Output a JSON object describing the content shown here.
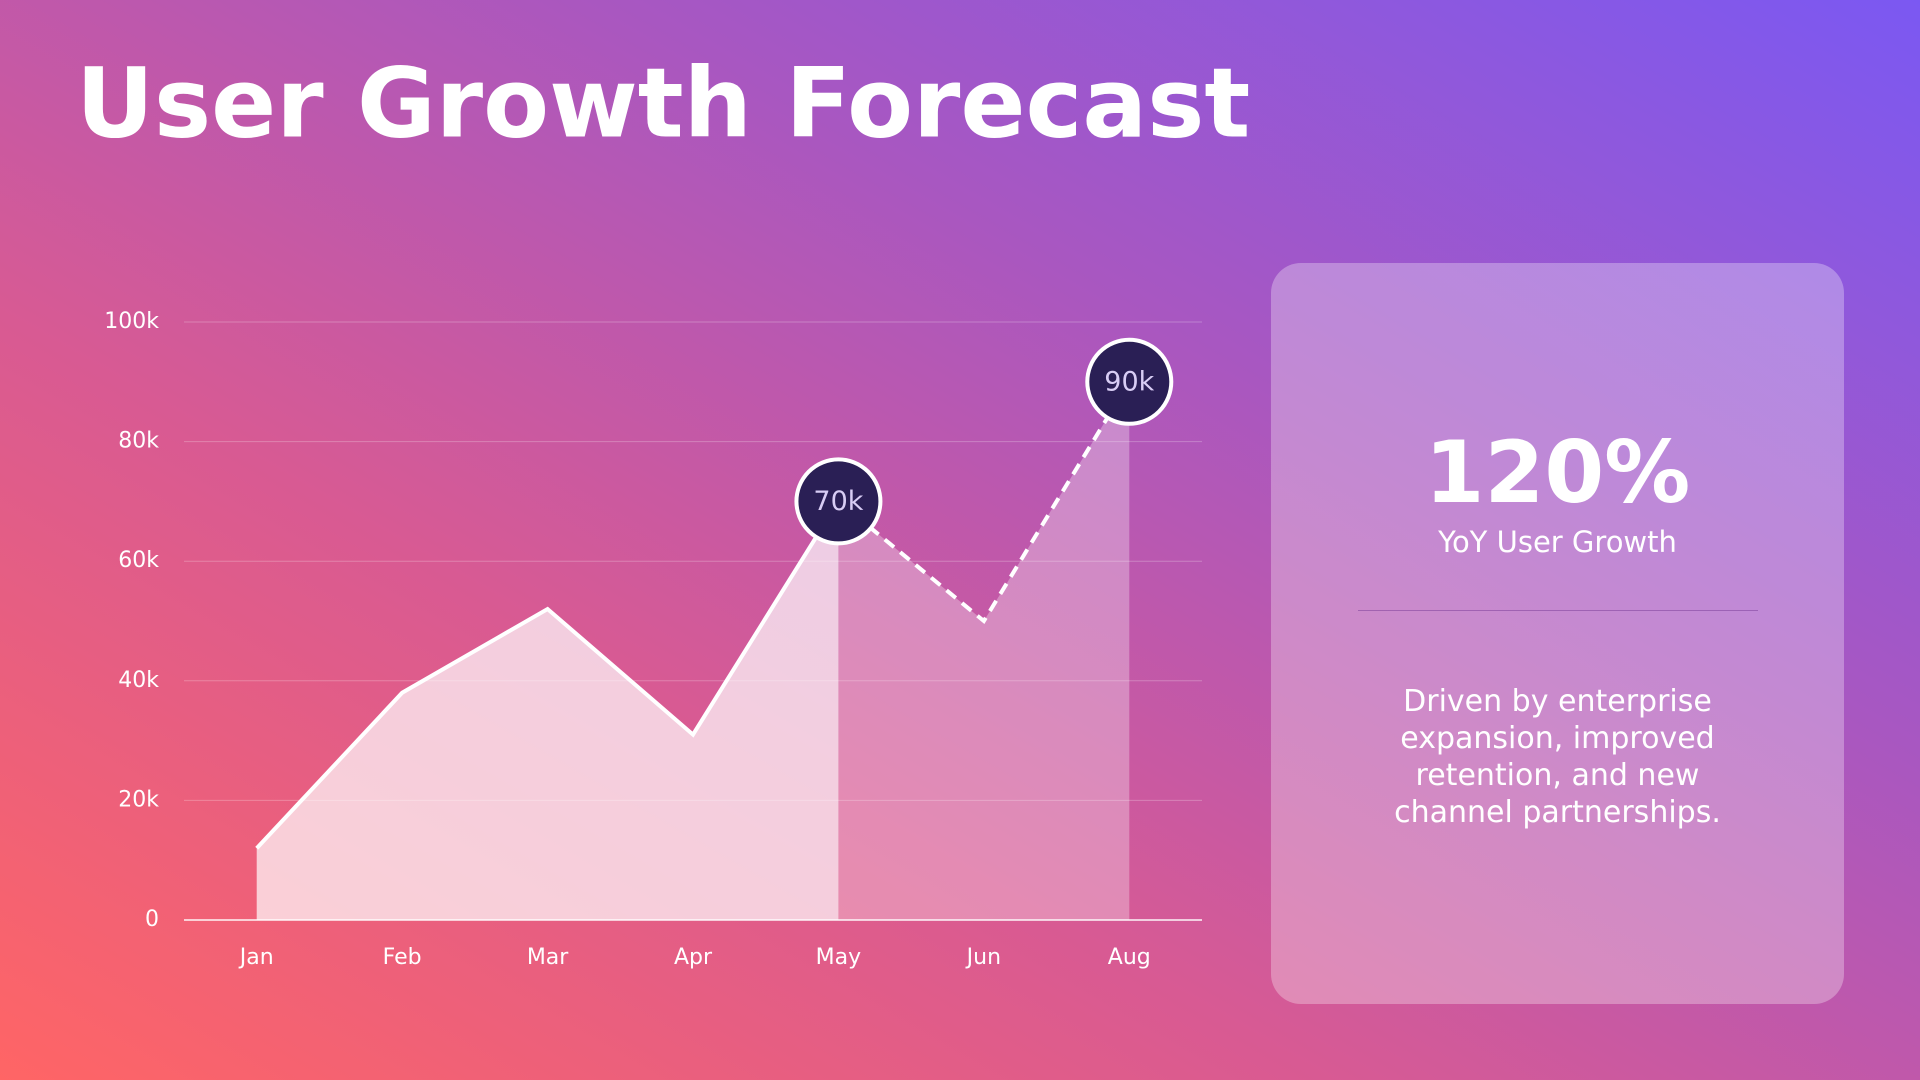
{
  "chart_data": {
    "type": "area",
    "title": "User Growth Forecast",
    "categories": [
      "Jan",
      "Feb",
      "Mar",
      "Apr",
      "May",
      "Jun",
      "Aug"
    ],
    "series": [
      {
        "color": "#ffffff",
        "values": [
          12000,
          38000,
          52000,
          31000,
          70000,
          null,
          null
        ]
      },
      {
        "color": "#ffffff",
        "dashed": true,
        "values": [
          null,
          null,
          null,
          null,
          70000,
          50000,
          90000
        ],
        "value_labels": [
          null,
          null,
          null,
          null,
          "70k",
          null,
          "90k"
        ]
      }
    ],
    "ylim": [
      0,
      100000
    ],
    "yticks": [
      0,
      {
        "value": 20000,
        "label": "20k"
      },
      {
        "value": 40000,
        "label": "40k"
      },
      {
        "value": 60000,
        "label": "60k"
      },
      {
        "value": 80000,
        "label": "80k"
      },
      {
        "value": 100000,
        "label": "100k"
      }
    ],
    "grid": true
  },
  "card": {
    "stat": "120%",
    "stat_label": "YoY User Growth",
    "description": "Driven by enterprise expansion, improved retention, and new channel partnerships."
  }
}
